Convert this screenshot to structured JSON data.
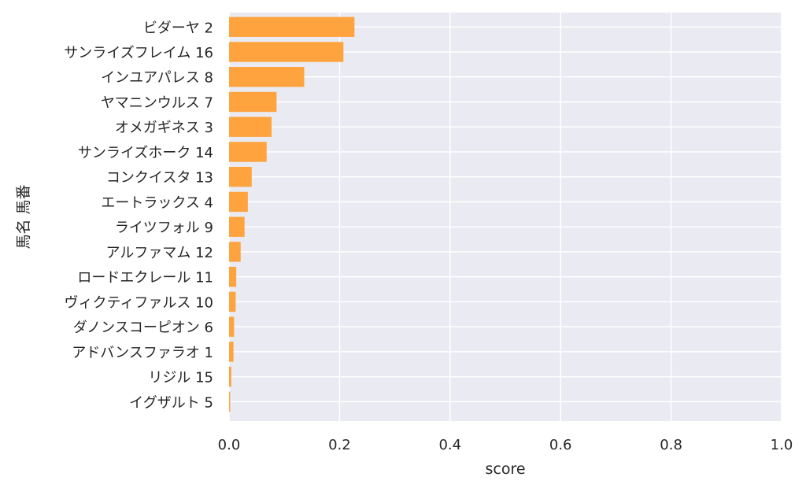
{
  "chart_data": {
    "type": "bar",
    "orientation": "horizontal",
    "categories": [
      "ビダーヤ 2",
      "サンライズフレイム 16",
      "インユアパレス 8",
      "ヤマニンウルス 7",
      "オメガギネス 3",
      "サンライズホーク 14",
      "コンクイスタ 13",
      "エートラックス 4",
      "ライツフォル 9",
      "アルファマム 12",
      "ロードエクレール 11",
      "ヴィクティファルス 10",
      "ダノンスコーピオン 6",
      "アドバンスファラオ 1",
      "リジル 15",
      "イグザルト 5"
    ],
    "values": [
      0.227,
      0.207,
      0.136,
      0.086,
      0.077,
      0.068,
      0.041,
      0.034,
      0.028,
      0.021,
      0.013,
      0.012,
      0.009,
      0.008,
      0.004,
      0.002
    ],
    "xlabel": "score",
    "ylabel": "馬名 馬番",
    "xlim": [
      0.0,
      1.0
    ],
    "xticks": [
      "0.0",
      "0.2",
      "0.4",
      "0.6",
      "0.8",
      "1.0"
    ],
    "grid": true,
    "colors": {
      "bar": "#ff9f33",
      "plot_background": "#eaeaf2",
      "grid": "#ffffff",
      "text": "#262626"
    }
  }
}
